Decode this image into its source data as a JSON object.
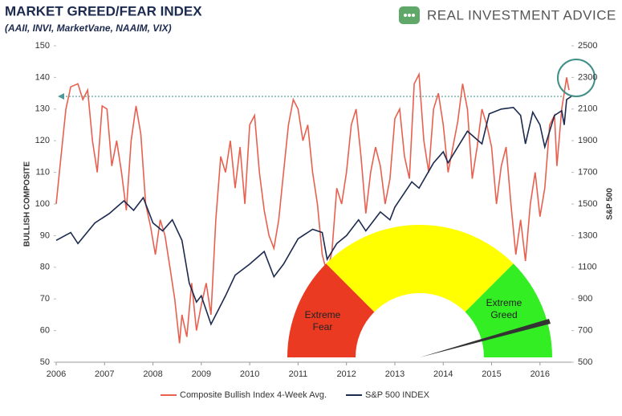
{
  "chart_data": {
    "type": "line",
    "title": "MARKET GREED/FEAR INDEX",
    "subtitle": "(AAII, INVI, MarketVane, NAAIM, VIX)",
    "brand": "REAL INVESTMENT ADVICE",
    "y_label": "BULLISH COMPOSITE",
    "y2_label": "S&P 500",
    "gauge_labels": [
      "Extreme Fear",
      "Extreme Greed"
    ],
    "reference_line": 134,
    "xlim": [
      2006,
      2016.65
    ],
    "xticks": [
      2006,
      2007,
      2008,
      2009,
      2010,
      2011,
      2012,
      2013,
      2014,
      2015,
      2016
    ],
    "ylim": [
      50,
      150
    ],
    "yticks": [
      50,
      60,
      70,
      80,
      90,
      100,
      110,
      120,
      130,
      140,
      150
    ],
    "y2lim": [
      500,
      2500
    ],
    "y2ticks": [
      500,
      700,
      900,
      1100,
      1300,
      1500,
      1700,
      1900,
      2100,
      2300,
      2500
    ],
    "legend": "bottom",
    "series": [
      {
        "name": "Composite Bullish Index 4-Week Avg.",
        "color": "#e8604f",
        "x": [
          2006.0,
          2006.1,
          2006.2,
          2006.3,
          2006.45,
          2006.55,
          2006.65,
          2006.75,
          2006.85,
          2006.95,
          2007.05,
          2007.15,
          2007.25,
          2007.35,
          2007.45,
          2007.55,
          2007.65,
          2007.75,
          2007.85,
          2007.95,
          2008.05,
          2008.15,
          2008.25,
          2008.35,
          2008.45,
          2008.55,
          2008.6,
          2008.7,
          2008.8,
          2008.9,
          2009.0,
          2009.1,
          2009.2,
          2009.3,
          2009.4,
          2009.5,
          2009.6,
          2009.7,
          2009.8,
          2009.9,
          2010.0,
          2010.1,
          2010.2,
          2010.3,
          2010.4,
          2010.5,
          2010.6,
          2010.7,
          2010.8,
          2010.9,
          2011.0,
          2011.1,
          2011.2,
          2011.3,
          2011.4,
          2011.5,
          2011.6,
          2011.7,
          2011.8,
          2011.9,
          2012.0,
          2012.1,
          2012.2,
          2012.3,
          2012.4,
          2012.5,
          2012.6,
          2012.7,
          2012.8,
          2012.9,
          2013.0,
          2013.1,
          2013.2,
          2013.3,
          2013.4,
          2013.5,
          2013.6,
          2013.7,
          2013.8,
          2013.9,
          2014.0,
          2014.1,
          2014.2,
          2014.3,
          2014.4,
          2014.5,
          2014.6,
          2014.7,
          2014.8,
          2014.9,
          2015.0,
          2015.1,
          2015.2,
          2015.3,
          2015.4,
          2015.5,
          2015.6,
          2015.7,
          2015.8,
          2015.9,
          2016.0,
          2016.1,
          2016.2,
          2016.3,
          2016.35,
          2016.45,
          2016.55,
          2016.6
        ],
        "values": [
          100,
          115,
          130,
          137,
          138,
          133,
          136,
          120,
          110,
          131,
          130,
          112,
          120,
          110,
          98,
          120,
          131,
          122,
          100,
          93,
          84,
          95,
          90,
          80,
          70,
          56,
          65,
          58,
          75,
          60,
          68,
          75,
          65,
          95,
          115,
          110,
          120,
          105,
          118,
          100,
          125,
          128,
          110,
          98,
          90,
          86,
          95,
          110,
          125,
          133,
          130,
          120,
          125,
          110,
          100,
          84,
          78,
          85,
          105,
          100,
          110,
          125,
          130,
          115,
          97,
          110,
          118,
          112,
          100,
          108,
          127,
          130,
          115,
          108,
          138,
          141,
          120,
          110,
          130,
          135,
          125,
          110,
          118,
          126,
          138,
          130,
          108,
          118,
          130,
          125,
          118,
          100,
          112,
          118,
          100,
          84,
          95,
          82,
          100,
          110,
          96,
          105,
          125,
          128,
          112,
          130,
          140,
          136
        ]
      },
      {
        "name": "S&P 500 INDEX",
        "color": "#1c2a4f",
        "axis": "y2",
        "x": [
          2006.0,
          2006.3,
          2006.45,
          2006.8,
          2007.1,
          2007.25,
          2007.4,
          2007.6,
          2007.8,
          2008.0,
          2008.2,
          2008.4,
          2008.6,
          2008.75,
          2008.9,
          2009.0,
          2009.2,
          2009.5,
          2009.7,
          2010.0,
          2010.3,
          2010.5,
          2010.7,
          2011.0,
          2011.3,
          2011.5,
          2011.6,
          2011.8,
          2012.0,
          2012.25,
          2012.4,
          2012.7,
          2012.9,
          2013.0,
          2013.35,
          2013.5,
          2013.8,
          2014.0,
          2014.1,
          2014.5,
          2014.8,
          2014.95,
          2015.2,
          2015.45,
          2015.6,
          2015.7,
          2015.85,
          2016.0,
          2016.1,
          2016.3,
          2016.45,
          2016.5,
          2016.55,
          2016.65
        ],
        "values": [
          1270,
          1320,
          1250,
          1380,
          1440,
          1480,
          1520,
          1460,
          1540,
          1380,
          1330,
          1400,
          1270,
          1000,
          880,
          920,
          740,
          920,
          1050,
          1120,
          1200,
          1040,
          1120,
          1280,
          1340,
          1320,
          1150,
          1250,
          1300,
          1400,
          1330,
          1450,
          1400,
          1480,
          1640,
          1600,
          1760,
          1830,
          1760,
          1960,
          1880,
          2070,
          2100,
          2110,
          2060,
          1880,
          2080,
          2000,
          1860,
          2060,
          2090,
          2000,
          2160,
          2180
        ]
      }
    ]
  }
}
